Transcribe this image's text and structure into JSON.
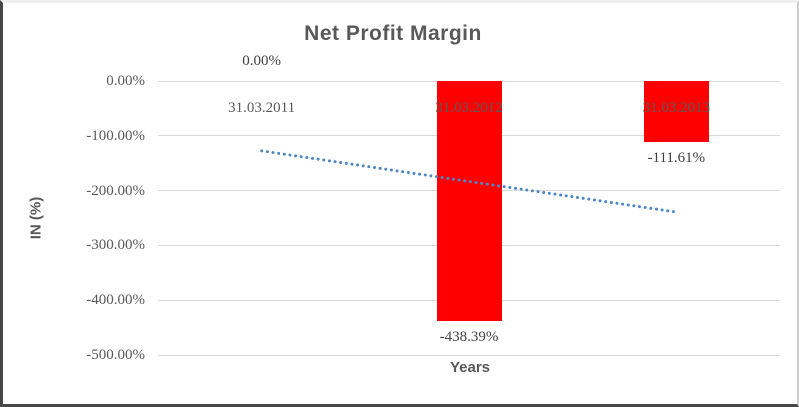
{
  "chart_data": {
    "type": "bar",
    "title": "Net Profit Margin",
    "xlabel": "Years",
    "ylabel": "IN (%)",
    "categories": [
      "31.03.2011",
      "31.03.2012",
      "31.03.2013"
    ],
    "values": [
      0.0,
      -438.39,
      -111.61
    ],
    "data_labels": [
      "0.00%",
      "-438.39%",
      "-111.61%"
    ],
    "y_ticks": [
      {
        "label": "0.00%",
        "value": 0
      },
      {
        "label": "-100.00%",
        "value": -100
      },
      {
        "label": "-200.00%",
        "value": -200
      },
      {
        "label": "-300.00%",
        "value": -300
      },
      {
        "label": "-400.00%",
        "value": -400
      },
      {
        "label": "-500.00%",
        "value": -500
      }
    ],
    "ylim": [
      0,
      -500
    ],
    "grid": true,
    "legend": "none",
    "trendline": {
      "type": "linear",
      "style": "dotted",
      "start_value": -127.5,
      "end_value": -239.2
    },
    "colors": {
      "bar": "#ff0000",
      "trendline": "#4e87c5",
      "gridline": "#d9d9d9",
      "title_text": "#595959",
      "axis_text": "#595959",
      "data_label_text": "#404040"
    }
  }
}
